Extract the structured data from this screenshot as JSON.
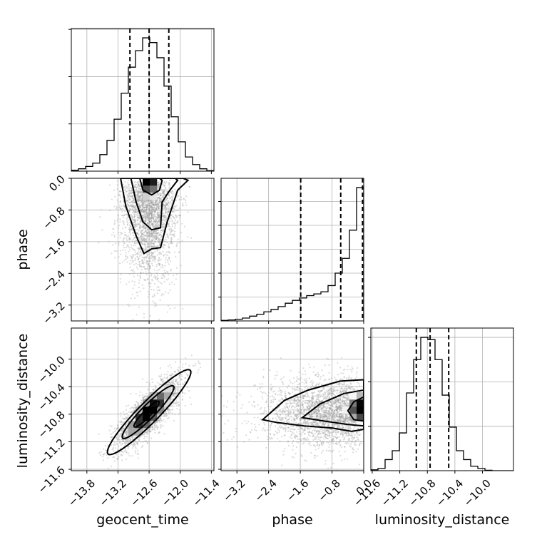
{
  "chart_data": {
    "type": "corner",
    "parameters": [
      "geocent_time",
      "phase",
      "luminosity_distance"
    ],
    "axes": {
      "geocent_time": {
        "range": [
          -14.1,
          -11.35
        ],
        "ticks": [
          -13.8,
          -13.2,
          -12.6,
          -12.0,
          -11.4
        ],
        "tick_labels": [
          "−13.8",
          "−13.2",
          "−12.6",
          "−12.0",
          "−11.4"
        ]
      },
      "phase": {
        "range": [
          -3.6,
          0.0
        ],
        "ticks": [
          -3.2,
          -2.4,
          -1.6,
          -0.8,
          0.0
        ],
        "tick_labels": [
          "−3.2",
          "−2.4",
          "−1.6",
          "−0.8",
          "0.0"
        ]
      },
      "luminosity_distance": {
        "range": [
          -11.62,
          -9.55
        ],
        "ticks": [
          -11.6,
          -11.2,
          -10.8,
          -10.4,
          -10.0
        ],
        "tick_labels": [
          "−11.6",
          "−11.2",
          "−10.8",
          "−10.4",
          "−10.0"
        ]
      }
    },
    "histograms": [
      {
        "param": "geocent_time",
        "bin_edges": [
          -14.1,
          -13.9625,
          -13.825,
          -13.6875,
          -13.55,
          -13.4125,
          -13.275,
          -13.1375,
          -13.0,
          -12.8625,
          -12.725,
          -12.5875,
          -12.45,
          -12.3125,
          -12.175,
          -12.0375,
          -11.9,
          -11.7625,
          -11.625,
          -11.4875,
          -11.35
        ],
        "counts": [
          2,
          5,
          10,
          17,
          35,
          65,
          110,
          165,
          220,
          255,
          282,
          272,
          240,
          180,
          115,
          62,
          30,
          14,
          5,
          1
        ],
        "quantiles": [
          -12.97,
          -12.6,
          -12.22
        ]
      },
      {
        "param": "phase",
        "bin_edges": [
          -3.6,
          -3.42,
          -3.24,
          -3.06,
          -2.88,
          -2.7,
          -2.52,
          -2.34,
          -2.16,
          -1.98,
          -1.8,
          -1.62,
          -1.44,
          -1.26,
          -1.08,
          -0.9,
          -0.72,
          -0.54,
          -0.36,
          -0.18,
          0.0
        ],
        "counts": [
          2,
          4,
          7,
          12,
          20,
          28,
          38,
          48,
          60,
          74,
          86,
          96,
          106,
          113,
          122,
          148,
          200,
          262,
          380,
          558
        ],
        "quantiles": [
          -1.59,
          -0.58,
          -0.03
        ]
      },
      {
        "param": "luminosity_distance",
        "bin_edges": [
          -11.62,
          -11.5165,
          -11.413,
          -11.3095,
          -11.206,
          -11.1025,
          -10.999,
          -10.8955,
          -10.792,
          -10.6885,
          -10.585,
          -10.4815,
          -10.378,
          -10.2745,
          -10.171,
          -10.0675,
          -9.964,
          -9.8605,
          -9.757,
          -9.6535,
          -9.55
        ],
        "counts": [
          2,
          5,
          25,
          45,
          85,
          175,
          250,
          300,
          295,
          250,
          170,
          98,
          45,
          25,
          10,
          5,
          1,
          0,
          0,
          0
        ],
        "quantiles": [
          -10.96,
          -10.76,
          -10.49
        ]
      }
    ]
  }
}
